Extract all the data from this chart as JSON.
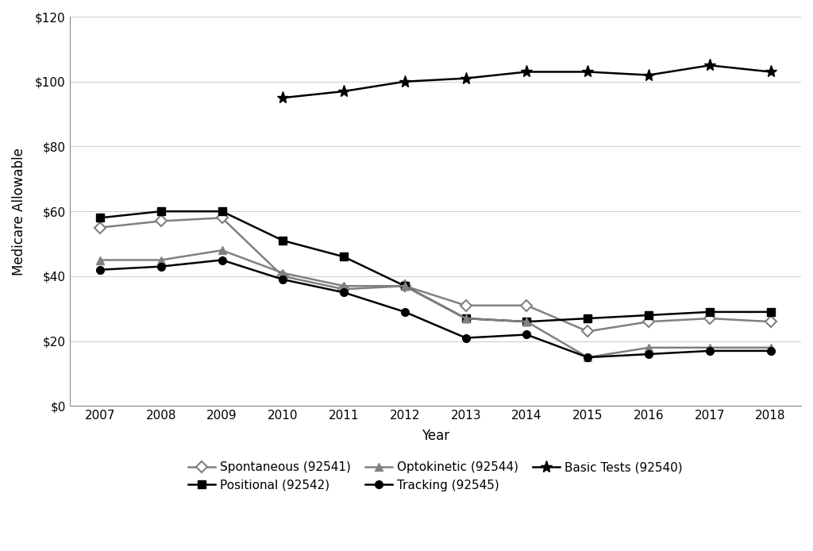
{
  "years": [
    2007,
    2008,
    2009,
    2010,
    2011,
    2012,
    2013,
    2014,
    2015,
    2016,
    2017,
    2018
  ],
  "spontaneous_92541": [
    55,
    57,
    58,
    40,
    36,
    37,
    31,
    31,
    23,
    26,
    27,
    26
  ],
  "positional_92542": [
    58,
    60,
    60,
    51,
    46,
    37,
    27,
    26,
    27,
    28,
    29,
    29
  ],
  "optokinetic_92544": [
    45,
    45,
    48,
    41,
    37,
    37,
    27,
    26,
    15,
    18,
    18,
    18
  ],
  "tracking_92545": [
    42,
    43,
    45,
    39,
    35,
    29,
    21,
    22,
    15,
    16,
    17,
    17
  ],
  "basic_tests_years": [
    2010,
    2011,
    2012,
    2013,
    2014,
    2015,
    2016,
    2017,
    2018
  ],
  "basic_tests_92540": [
    95,
    97,
    100,
    101,
    103,
    103,
    102,
    105,
    103
  ],
  "xlabel": "Year",
  "ylabel": "Medicare Allowable",
  "ylim": [
    0,
    120
  ],
  "yticks": [
    0,
    20,
    40,
    60,
    80,
    100,
    120
  ],
  "ytick_labels": [
    "$0",
    "$20",
    "$40",
    "$60",
    "$80",
    "$100",
    "$120"
  ],
  "legend_labels": [
    "Spontaneous (92541)",
    "Positional (92542)",
    "Optokinetic (92544)",
    "Tracking (92545)",
    "Basic Tests (92540)"
  ],
  "color_gray": "#808080",
  "color_black": "#000000",
  "color_dark_gray": "#404040",
  "background_color": "#ffffff"
}
